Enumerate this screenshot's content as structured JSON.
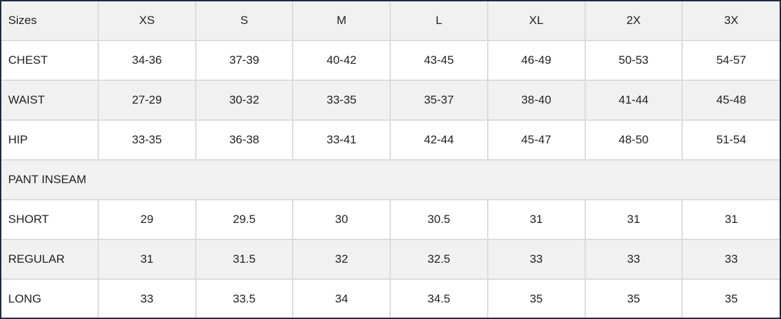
{
  "table": {
    "header": [
      "Sizes",
      "XS",
      "S",
      "M",
      "L",
      "XL",
      "2X",
      "3X"
    ],
    "rows": [
      [
        "CHEST",
        "34-36",
        "37-39",
        "40-42",
        "43-45",
        "46-49",
        "50-53",
        "54-57"
      ],
      [
        "WAIST",
        "27-29",
        "30-32",
        "33-35",
        "35-37",
        "38-40",
        "41-44",
        "45-48"
      ],
      [
        "HIP",
        "33-35",
        "36-38",
        "33-41",
        "42-44",
        "45-47",
        "48-50",
        "51-54"
      ],
      [
        "PANT INSEAM"
      ],
      [
        "SHORT",
        "29",
        "29.5",
        "30",
        "30.5",
        "31",
        "31",
        "31"
      ],
      [
        "REGULAR",
        "31",
        "31.5",
        "32",
        "32.5",
        "33",
        "33",
        "33"
      ],
      [
        "LONG",
        "33",
        "33.5",
        "34",
        "34.5",
        "35",
        "35",
        "35"
      ]
    ]
  }
}
